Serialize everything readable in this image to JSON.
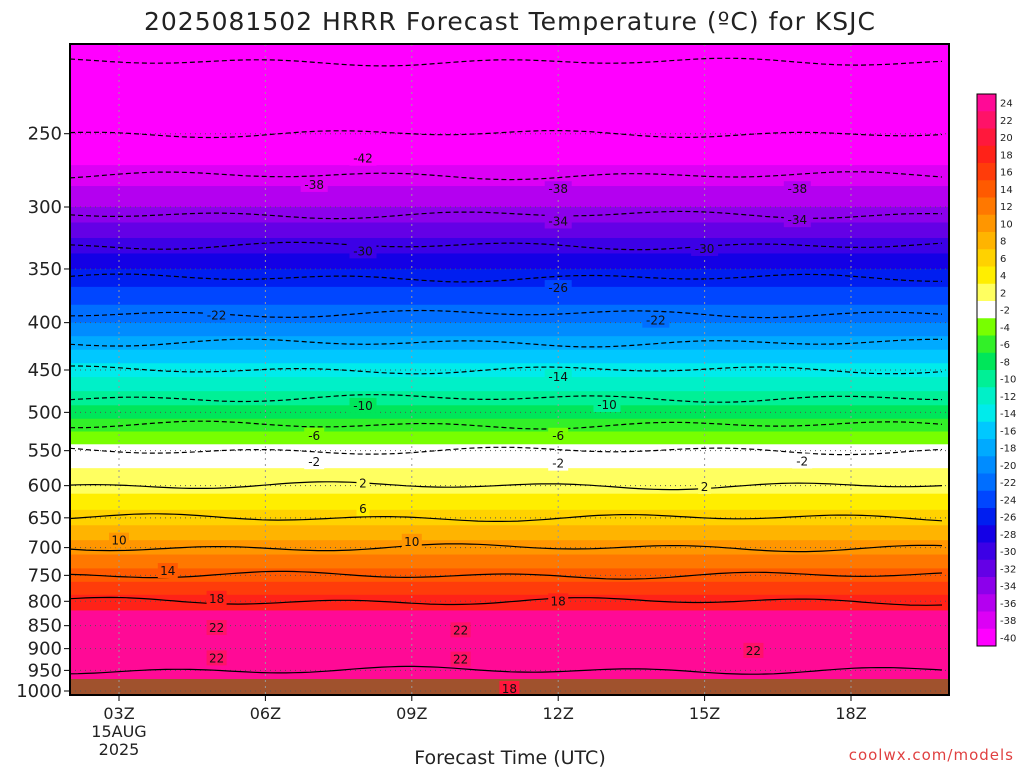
{
  "chart_data": {
    "type": "heatmap",
    "title": "2025081502 HRRR Forecast Temperature (ºC) for KSJC",
    "xlabel": "Forecast Time (UTC)",
    "ylabel": "",
    "credit": "coolwx.com/models",
    "x_ticks": [
      {
        "hour": 3,
        "label": "03Z",
        "date_line1": "15AUG",
        "date_line2": "2025"
      },
      {
        "hour": 6,
        "label": "06Z"
      },
      {
        "hour": 9,
        "label": "09Z"
      },
      {
        "hour": 12,
        "label": "12Z"
      },
      {
        "hour": 15,
        "label": "15Z"
      },
      {
        "hour": 18,
        "label": "18Z"
      }
    ],
    "xlim": [
      2,
      20
    ],
    "y_ticks": [
      250,
      300,
      350,
      400,
      450,
      500,
      550,
      600,
      650,
      700,
      750,
      800,
      850,
      900,
      950,
      1000
    ],
    "ylim": [
      200,
      1010
    ],
    "y_scale": "log",
    "levels": [
      1010,
      1000,
      950,
      900,
      850,
      800,
      750,
      700,
      650,
      600,
      550,
      500,
      450,
      400,
      350,
      300,
      250,
      200
    ],
    "temperature_profile": [
      19,
      20,
      22,
      22,
      21,
      18,
      14,
      10,
      6,
      2,
      -2,
      -8,
      -14,
      -21,
      -27,
      -35,
      -42,
      -47
    ],
    "colorbar": {
      "ticks": [
        24,
        22,
        20,
        18,
        16,
        14,
        12,
        10,
        8,
        6,
        4,
        2,
        -2,
        -4,
        -6,
        -8,
        -10,
        -12,
        -14,
        -16,
        -18,
        -20,
        -22,
        -24,
        -26,
        -28,
        -30,
        -32,
        -34,
        -36,
        -38,
        -40
      ],
      "colors": [
        "#ff0a96",
        "#ff1268",
        "#ff183c",
        "#ff2218",
        "#ff3c0a",
        "#ff5a00",
        "#ff7800",
        "#ff9600",
        "#ffb400",
        "#ffd200",
        "#ffee00",
        "#ffff60",
        "#ffffff",
        "#78ff00",
        "#32f028",
        "#00e65a",
        "#00f096",
        "#00f0c8",
        "#00ebeb",
        "#00c8ff",
        "#00aaff",
        "#008cff",
        "#006eff",
        "#0046ff",
        "#001ef0",
        "#1400e6",
        "#3c00e6",
        "#6400e6",
        "#8c00eb",
        "#b400f0",
        "#dc00f5",
        "#ff00ff"
      ]
    },
    "contour_labels": [
      {
        "t": "42",
        "h": 8.0,
        "p": 266
      },
      {
        "t": "38",
        "h": 7.0,
        "p": 284
      },
      {
        "t": "38",
        "h": 12.0,
        "p": 287
      },
      {
        "t": "38",
        "h": 16.9,
        "p": 287
      },
      {
        "t": "34",
        "h": 12.0,
        "p": 311
      },
      {
        "t": "34",
        "h": 16.9,
        "p": 310
      },
      {
        "t": "30",
        "h": 8.0,
        "p": 335
      },
      {
        "t": "30",
        "h": 15.0,
        "p": 333
      },
      {
        "t": "26",
        "h": 12.0,
        "p": 367
      },
      {
        "t": "22",
        "h": 5.0,
        "p": 393
      },
      {
        "t": "22",
        "h": 14.0,
        "p": 398
      },
      {
        "t": "14",
        "h": 12.0,
        "p": 458
      },
      {
        "t": "10",
        "h": 8.0,
        "p": 492
      },
      {
        "t": "10",
        "h": 13.0,
        "p": 491
      },
      {
        "t": "6",
        "h": 7.0,
        "p": 530
      },
      {
        "t": "6",
        "h": 12.0,
        "p": 530
      },
      {
        "t": "2",
        "h": 7.0,
        "p": 566
      },
      {
        "t": "2",
        "h": 12.0,
        "p": 568
      },
      {
        "t": "2",
        "h": 17.0,
        "p": 565
      },
      {
        "t": "2",
        "h": 8.0,
        "p": 597
      },
      {
        "t": "2",
        "h": 15.0,
        "p": 602
      },
      {
        "t": "6",
        "h": 8.0,
        "p": 636
      },
      {
        "t": "10",
        "h": 3.0,
        "p": 688
      },
      {
        "t": "10",
        "h": 9.0,
        "p": 690
      },
      {
        "t": "14",
        "h": 4.0,
        "p": 742
      },
      {
        "t": "18",
        "h": 5.0,
        "p": 795
      },
      {
        "t": "18",
        "h": 12.0,
        "p": 800
      },
      {
        "t": "22",
        "h": 5.0,
        "p": 855
      },
      {
        "t": "22",
        "h": 10.0,
        "p": 860
      },
      {
        "t": "22",
        "h": 5.0,
        "p": 922
      },
      {
        "t": "22",
        "h": 10.0,
        "p": 925
      },
      {
        "t": "22",
        "h": 16.0,
        "p": 905
      },
      {
        "t": "18",
        "h": 11.0,
        "p": 995
      }
    ]
  }
}
